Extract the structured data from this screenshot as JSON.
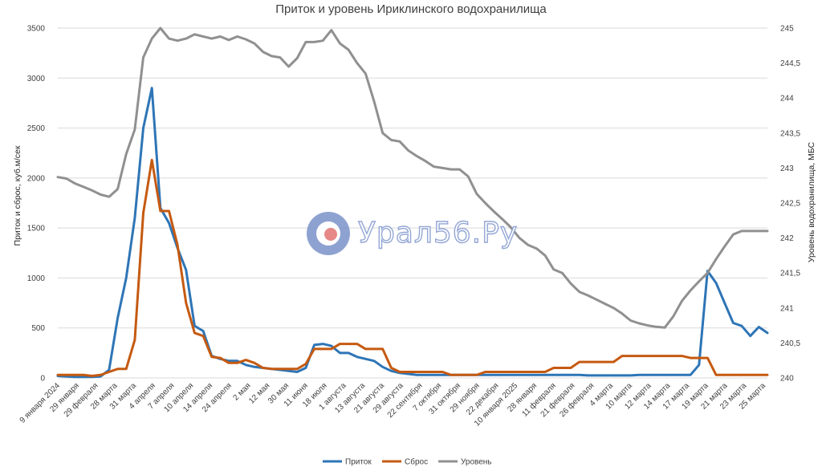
{
  "chart_data": {
    "type": "line",
    "title": "Приток и уровень Ириклинского водохранилища",
    "ylabel": "Приток и сброс, куб.м/сек",
    "y2label": "Уровень водохранилища, МБС",
    "ylim": [
      0,
      3500
    ],
    "y2lim": [
      240,
      245
    ],
    "yticks": [
      "0",
      "500",
      "1000",
      "1500",
      "2000",
      "2500",
      "3000",
      "3500"
    ],
    "y2ticks": [
      "240",
      "240,5",
      "241",
      "241,5",
      "242",
      "242,5",
      "243",
      "243,5",
      "244",
      "244,5",
      "245"
    ],
    "xticklabels": [
      "9 января 2024",
      "29 января",
      "29 февраля",
      "28 марта",
      "31 марта",
      "4 апреля",
      "7 апреля",
      "10 апреля",
      "14 апреля",
      "24 апреля",
      "2 мая",
      "12 мая",
      "30 мая",
      "11 июня",
      "18 июля",
      "1 августа",
      "13 августа",
      "21 августа",
      "29 августа",
      "22 сентября",
      "7 октября",
      "31 октября",
      "29 ноября",
      "22 декабря",
      "10 января 2025",
      "28 января",
      "11 февраля",
      "21 февраля",
      "26 февраля",
      "4 марта",
      "10 марта",
      "12 марта",
      "14 марта",
      "17 марта",
      "19 марта",
      "21 марта",
      "23 марта",
      "25 марта"
    ],
    "grid": true,
    "legend_position": "bottom",
    "series": [
      {
        "name": "Приток",
        "axis": "left",
        "color": "#2e75b6",
        "values": [
          20,
          15,
          10,
          10,
          10,
          15,
          80,
          600,
          1000,
          1600,
          2500,
          2900,
          1700,
          1550,
          1300,
          1080,
          520,
          470,
          220,
          190,
          170,
          170,
          130,
          110,
          100,
          90,
          80,
          70,
          60,
          100,
          330,
          340,
          320,
          250,
          250,
          210,
          190,
          170,
          110,
          70,
          50,
          40,
          30,
          30,
          30,
          30,
          30,
          30,
          30,
          30,
          30,
          30,
          30,
          30,
          30,
          30,
          30,
          30,
          30,
          30,
          30,
          30,
          25,
          25,
          25,
          25,
          25,
          25,
          30,
          30,
          30,
          30,
          30,
          30,
          30,
          130,
          1070,
          950,
          750,
          550,
          520,
          420,
          510,
          450
        ]
      },
      {
        "name": "Сброс",
        "axis": "left",
        "color": "#c55a11",
        "values": [
          30,
          30,
          30,
          30,
          20,
          30,
          60,
          90,
          90,
          380,
          1650,
          2180,
          1670,
          1670,
          1330,
          750,
          450,
          420,
          210,
          200,
          150,
          150,
          180,
          150,
          100,
          90,
          90,
          90,
          90,
          140,
          290,
          290,
          290,
          340,
          340,
          340,
          290,
          290,
          290,
          100,
          60,
          60,
          60,
          60,
          60,
          60,
          30,
          30,
          30,
          30,
          60,
          60,
          60,
          60,
          60,
          60,
          60,
          60,
          100,
          100,
          100,
          160,
          160,
          160,
          160,
          160,
          220,
          220,
          220,
          220,
          220,
          220,
          220,
          220,
          200,
          200,
          200,
          30,
          30,
          30,
          30,
          30,
          30,
          30
        ]
      },
      {
        "name": "Уровень",
        "axis": "right",
        "color": "#909090",
        "values": [
          242.87,
          242.85,
          242.78,
          242.73,
          242.68,
          242.62,
          242.59,
          242.7,
          243.2,
          243.55,
          244.58,
          244.85,
          245.0,
          244.85,
          244.82,
          244.85,
          244.91,
          244.88,
          244.85,
          244.88,
          244.83,
          244.88,
          244.84,
          244.78,
          244.66,
          244.6,
          244.58,
          244.45,
          244.57,
          244.8,
          244.8,
          244.82,
          244.97,
          244.78,
          244.69,
          244.5,
          244.35,
          243.95,
          243.5,
          243.4,
          243.38,
          243.25,
          243.17,
          243.1,
          243.02,
          243.0,
          242.98,
          242.98,
          242.88,
          242.63,
          242.5,
          242.38,
          242.27,
          242.15,
          242.0,
          241.9,
          241.85,
          241.75,
          241.55,
          241.5,
          241.35,
          241.23,
          241.18,
          241.12,
          241.06,
          241.0,
          240.92,
          240.82,
          240.78,
          240.75,
          240.73,
          240.72,
          240.88,
          241.1,
          241.25,
          241.38,
          241.5,
          241.7,
          241.88,
          242.05,
          242.1,
          242.1,
          242.1,
          242.1
        ]
      }
    ]
  },
  "watermark": {
    "text": "Урал56.Ру"
  }
}
